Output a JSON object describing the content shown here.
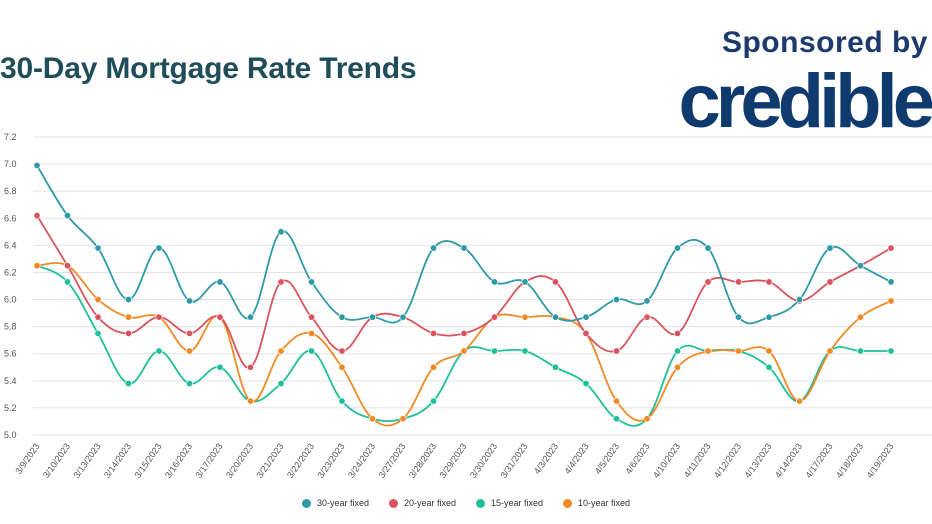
{
  "header": {
    "title": "30-Day Mortgage Rate Trends",
    "sponsor_text": "Sponsored by",
    "brand": "credible"
  },
  "colors": {
    "title": "#1f4e5a",
    "brand": "#0f3a6e",
    "grid": "#e3e3e3"
  },
  "chart_data": {
    "type": "line",
    "title": "30-Day Mortgage Rate Trends",
    "xlabel": "",
    "ylabel": "",
    "ylim": [
      5.0,
      7.2
    ],
    "yticks": [
      "7.2",
      "7.0",
      "6.8",
      "6.6",
      "6.4",
      "6.2",
      "6.0",
      "5.8",
      "5.6",
      "5.4",
      "5.2",
      "5.0"
    ],
    "legend_position": "bottom-center",
    "categories": [
      "3/9/2023",
      "3/10/2023",
      "3/13/2023",
      "3/14/2023",
      "3/15/2023",
      "3/16/2023",
      "3/17/2023",
      "3/20/2023",
      "3/21/2023",
      "3/22/2023",
      "3/23/2023",
      "3/24/2023",
      "3/27/2023",
      "3/28/2023",
      "3/29/2023",
      "3/30/2023",
      "3/31/2023",
      "4/3/2023",
      "4/4/2023",
      "4/5/2023",
      "4/6/2023",
      "4/10/2023",
      "4/11/2023",
      "4/12/2023",
      "4/13/2023",
      "4/14/2023",
      "4/17/2023",
      "4/18/2023",
      "4/19/2023"
    ],
    "series": [
      {
        "name": "30-year fixed",
        "color": "#2e9aa8",
        "values": [
          6.99,
          6.62,
          6.38,
          6.0,
          6.38,
          5.99,
          6.13,
          5.87,
          6.5,
          6.13,
          5.87,
          5.87,
          5.87,
          6.38,
          6.38,
          6.13,
          6.13,
          5.87,
          5.87,
          6.0,
          5.99,
          6.38,
          6.38,
          5.87,
          5.87,
          6.0,
          6.38,
          6.25,
          6.13
        ]
      },
      {
        "name": "20-year fixed",
        "color": "#d9545f",
        "values": [
          6.62,
          6.25,
          5.87,
          5.75,
          5.87,
          5.75,
          5.87,
          5.5,
          6.13,
          5.87,
          5.62,
          5.87,
          5.87,
          5.75,
          5.75,
          5.87,
          6.13,
          6.13,
          5.75,
          5.62,
          5.87,
          5.75,
          6.13,
          6.13,
          6.13,
          5.99,
          6.13,
          6.25,
          6.38
        ]
      },
      {
        "name": "15-year fixed",
        "color": "#1fbf9b",
        "values": [
          6.25,
          6.13,
          5.75,
          5.38,
          5.62,
          5.38,
          5.5,
          5.25,
          5.38,
          5.62,
          5.25,
          5.12,
          5.12,
          5.25,
          5.62,
          5.62,
          5.62,
          5.5,
          5.38,
          5.12,
          5.12,
          5.62,
          5.62,
          5.62,
          5.5,
          5.25,
          5.62,
          5.62,
          5.62
        ]
      },
      {
        "name": "10-year fixed",
        "color": "#f08a24",
        "values": [
          6.25,
          6.25,
          6.0,
          5.87,
          5.87,
          5.62,
          5.87,
          5.25,
          5.62,
          5.75,
          5.5,
          5.12,
          5.12,
          5.5,
          5.62,
          5.87,
          5.87,
          5.87,
          5.75,
          5.25,
          5.12,
          5.5,
          5.62,
          5.62,
          5.62,
          5.25,
          5.62,
          5.87,
          5.99
        ]
      }
    ]
  }
}
